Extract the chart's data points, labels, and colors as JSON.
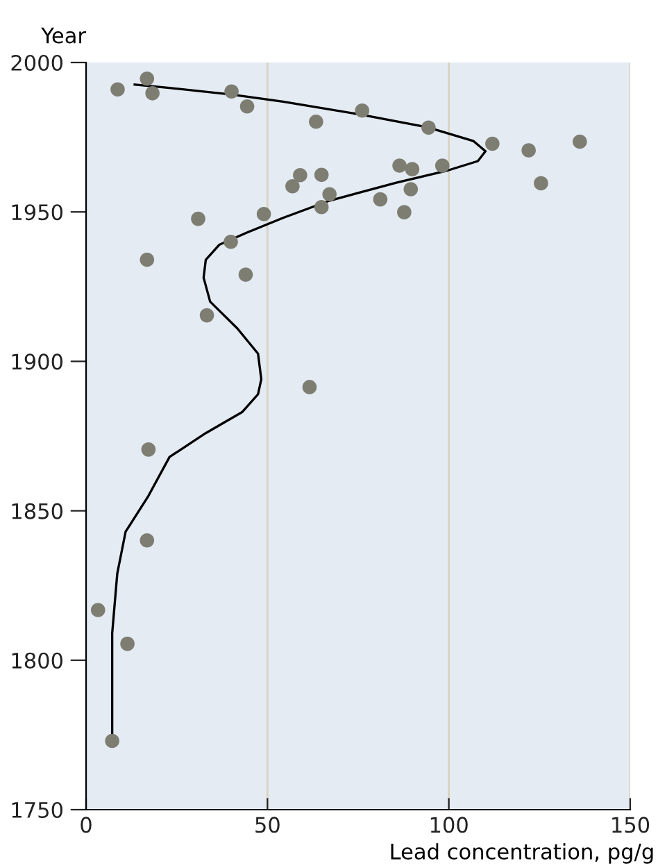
{
  "chart_data": {
    "type": "scatter",
    "xlabel": "Lead concentration, pg/g",
    "ylabel": "Year",
    "xlim": [
      0,
      150
    ],
    "xticks": [
      0,
      50,
      100,
      150
    ],
    "ylim": [
      1750,
      2000
    ],
    "yticks": [
      1750,
      1800,
      1850,
      1900,
      1950,
      2000
    ],
    "grid": "x",
    "series": [
      {
        "marker": "circle",
        "color": "#7d7d72",
        "x": [
          8.7,
          16.8,
          18.3,
          40.1,
          44.4,
          63.4,
          76.1,
          94.4,
          112.0,
          122.0,
          136.1,
          125.4,
          86.4,
          89.9,
          98.2,
          59.0,
          64.9,
          56.9,
          67.1,
          89.5,
          81.1,
          64.9,
          87.7,
          49.0,
          30.9,
          39.9,
          16.8,
          44.0,
          33.3,
          61.6,
          17.2,
          16.8,
          3.3,
          11.4,
          7.2
        ],
        "values": [
          1991.0,
          1994.6,
          1989.7,
          1990.3,
          1985.3,
          1980.2,
          1983.9,
          1978.2,
          1972.8,
          1970.6,
          1973.5,
          1959.6,
          1965.5,
          1964.3,
          1965.5,
          1962.3,
          1962.4,
          1958.6,
          1955.9,
          1957.6,
          1954.2,
          1951.6,
          1949.9,
          1949.3,
          1947.7,
          1940.0,
          1934.0,
          1929.0,
          1915.4,
          1891.4,
          1870.5,
          1840.1,
          1816.8,
          1805.5,
          1773.0
        ]
      },
      {
        "type": "line",
        "color": "#000000",
        "marker": "none",
        "x": [
          7.2,
          7.2,
          8.6,
          10.9,
          17.2,
          23,
          33,
          43,
          47.4,
          48.3,
          47.4,
          41.7,
          34.2,
          32.4,
          33,
          36.7,
          44.2,
          54.3,
          66.7,
          85.5,
          99.2,
          108,
          110.1,
          106.8,
          94.2,
          76.1,
          54.3,
          40.1,
          23,
          13.4
        ],
        "values": [
          1773,
          1809,
          1829,
          1843,
          1855,
          1868,
          1876,
          1883,
          1889,
          1894,
          1902.6,
          1911,
          1920,
          1928,
          1934,
          1939,
          1943,
          1948,
          1953.6,
          1959.8,
          1963.7,
          1967,
          1970.3,
          1973.7,
          1978.3,
          1982.5,
          1986.9,
          1989.3,
          1991.5,
          1992.6
        ]
      }
    ]
  }
}
